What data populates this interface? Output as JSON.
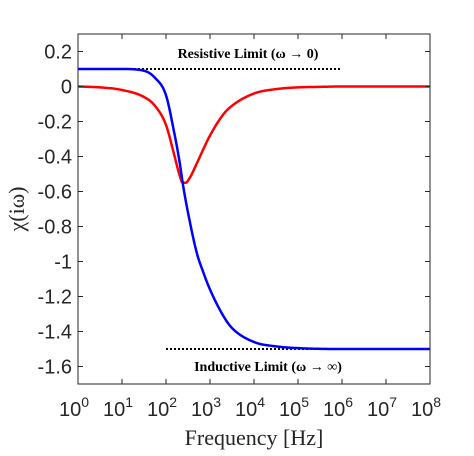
{
  "chart_data": {
    "type": "line",
    "xlabel": "Frequency [Hz]",
    "ylabel": "χ(iω)",
    "x_scale": "log",
    "xlim": [
      1,
      100000000
    ],
    "ylim": [
      -1.7,
      0.3
    ],
    "grid": false,
    "x_ticks": [
      1,
      10,
      100,
      1000,
      10000,
      100000,
      1000000,
      10000000,
      100000000
    ],
    "x_tick_bases": [
      "10",
      "10",
      "10",
      "10",
      "10",
      "10",
      "10",
      "10",
      "10"
    ],
    "x_tick_exps": [
      "0",
      "1",
      "2",
      "3",
      "4",
      "5",
      "6",
      "7",
      "8"
    ],
    "y_ticks": [
      0.2,
      0,
      -0.2,
      -0.4,
      -0.6,
      -0.8,
      -1,
      -1.2,
      -1.4,
      -1.6
    ],
    "y_tick_labels": [
      "0.2",
      "0",
      "-0.2",
      "-0.4",
      "-0.6",
      "-0.8",
      "-1",
      "-1.2",
      "-1.4",
      "-1.6"
    ],
    "series": [
      {
        "color": "#ff0000",
        "x": [
          1,
          3.16,
          10,
          31.6,
          56,
          100,
          150,
          200,
          240,
          280,
          350,
          500,
          700,
          1000,
          2000,
          3160,
          10000,
          31600,
          100000,
          316000,
          1000000,
          10000000,
          100000000
        ],
        "y": [
          0,
          -0.005,
          -0.02,
          -0.06,
          -0.11,
          -0.22,
          -0.38,
          -0.5,
          -0.55,
          -0.55,
          -0.52,
          -0.44,
          -0.36,
          -0.28,
          -0.16,
          -0.11,
          -0.04,
          -0.015,
          -0.005,
          -0.002,
          0,
          0,
          0
        ]
      },
      {
        "color": "#0000ff",
        "x": [
          1,
          10,
          31.6,
          56,
          100,
          150,
          200,
          250,
          316,
          500,
          700,
          1000,
          2000,
          3160,
          10000,
          31600,
          100000,
          316000,
          1000000,
          10000000,
          100000000
        ],
        "y": [
          0.1,
          0.1,
          0.09,
          0.05,
          -0.05,
          -0.25,
          -0.42,
          -0.58,
          -0.72,
          -0.95,
          -1.06,
          -1.16,
          -1.31,
          -1.38,
          -1.46,
          -1.485,
          -1.495,
          -1.499,
          -1.5,
          -1.5,
          -1.5
        ]
      }
    ],
    "reference_lines": [
      {
        "label": "Resistive Limit (ω → 0)",
        "y": 0.1,
        "x_start": 1,
        "x_end": 1000000,
        "style": "dotted",
        "color": "#000000"
      },
      {
        "label": "Inductive Limit (ω → ∞)",
        "y": -1.5,
        "x_start": 100,
        "x_end": 100000000,
        "style": "dotted",
        "color": "#000000"
      }
    ]
  }
}
